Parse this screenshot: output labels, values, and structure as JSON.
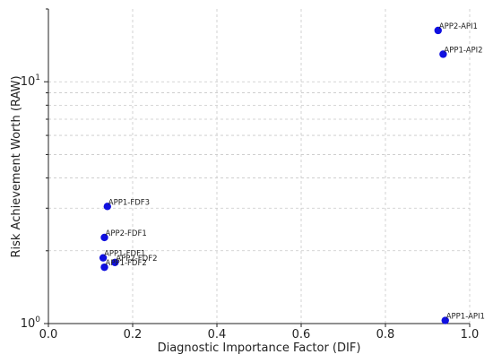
{
  "chart_data": {
    "type": "scatter",
    "title": "",
    "xlabel": "Diagnostic Importance Factor (DIF)",
    "ylabel": "Risk Achievement Worth (RAW)",
    "xlim": [
      0.0,
      1.0
    ],
    "ylim": [
      1,
      20
    ],
    "yscale": "log",
    "grid": true,
    "marker_color": "#1010e0",
    "x_ticks": [
      "0.0",
      "0.2",
      "0.4",
      "0.6",
      "0.8",
      "1.0"
    ],
    "y_ticks": [
      "10",
      "10"
    ],
    "points": [
      {
        "label": "APP2-API1",
        "x": 0.925,
        "y": 16.3
      },
      {
        "label": "APP1-API2",
        "x": 0.937,
        "y": 13.0
      },
      {
        "label": "APP1-FDF3",
        "x": 0.14,
        "y": 3.05
      },
      {
        "label": "APP2-FDF1",
        "x": 0.133,
        "y": 2.27
      },
      {
        "label": "APP1-FDF1",
        "x": 0.13,
        "y": 1.87
      },
      {
        "label": "APP2-FDF2",
        "x": 0.158,
        "y": 1.79
      },
      {
        "label": "APP1-FDF2",
        "x": 0.133,
        "y": 1.71
      },
      {
        "label": "APP1-API1",
        "x": 0.942,
        "y": 1.03
      }
    ]
  }
}
